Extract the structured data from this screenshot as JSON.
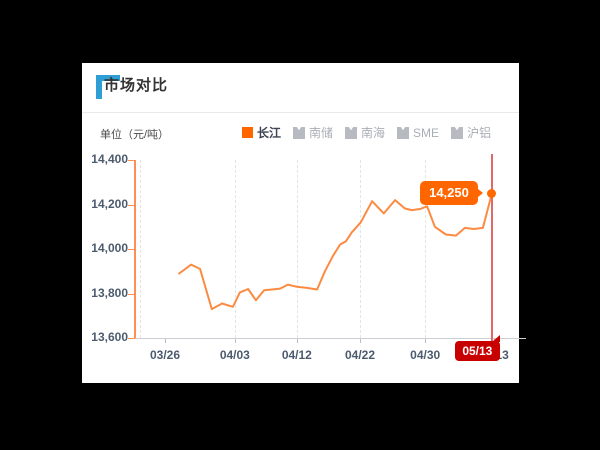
{
  "page": {
    "background": "#000000",
    "card_background": "#ffffff"
  },
  "header": {
    "title": "市场对比",
    "accent_color": "#2e9ed5"
  },
  "chart": {
    "unit_label": "单位（元/吨）",
    "legend": [
      {
        "label": "长江",
        "selected": true,
        "color": "#ff6600"
      },
      {
        "label": "南储",
        "selected": false
      },
      {
        "label": "南海",
        "selected": false
      },
      {
        "label": "SME",
        "selected": false
      },
      {
        "label": "沪铝",
        "selected": false
      }
    ]
  },
  "chart_data": {
    "type": "line",
    "title": "市场对比",
    "ylabel": "单位（元/吨）",
    "ylim": [
      13600,
      14400
    ],
    "grid": "dashed-vertical",
    "line_color": "#fb8b42",
    "axis_color": "#fb9050",
    "y_ticks": [
      {
        "value": 13600,
        "label": "13,600"
      },
      {
        "value": 13800,
        "label": "13,800"
      },
      {
        "value": 14000,
        "label": "14,000"
      },
      {
        "value": 14200,
        "label": "14,200"
      },
      {
        "value": 14400,
        "label": "14,400"
      }
    ],
    "x_ticks": [
      {
        "label": "03/26",
        "pos": 0.077
      },
      {
        "label": "04/03",
        "pos": 0.256
      },
      {
        "label": "04/12",
        "pos": 0.415
      },
      {
        "label": "04/22",
        "pos": 0.577
      },
      {
        "label": "04/30",
        "pos": 0.744
      },
      {
        "label": "05/13",
        "pos": 0.92
      }
    ],
    "gridlines_x": [
      0.013,
      0.256,
      0.415,
      0.577,
      0.744
    ],
    "series": [
      {
        "name": "长江",
        "points": [
          [
            0.113,
            13890
          ],
          [
            0.144,
            13930
          ],
          [
            0.167,
            13910
          ],
          [
            0.197,
            13730
          ],
          [
            0.223,
            13755
          ],
          [
            0.251,
            13740
          ],
          [
            0.269,
            13805
          ],
          [
            0.29,
            13820
          ],
          [
            0.31,
            13770
          ],
          [
            0.331,
            13815
          ],
          [
            0.351,
            13818
          ],
          [
            0.372,
            13822
          ],
          [
            0.392,
            13840
          ],
          [
            0.415,
            13830
          ],
          [
            0.441,
            13825
          ],
          [
            0.467,
            13818
          ],
          [
            0.487,
            13900
          ],
          [
            0.508,
            13970
          ],
          [
            0.526,
            14020
          ],
          [
            0.541,
            14035
          ],
          [
            0.556,
            14075
          ],
          [
            0.579,
            14120
          ],
          [
            0.608,
            14215
          ],
          [
            0.638,
            14160
          ],
          [
            0.667,
            14220
          ],
          [
            0.692,
            14182
          ],
          [
            0.71,
            14175
          ],
          [
            0.731,
            14180
          ],
          [
            0.749,
            14192
          ],
          [
            0.769,
            14100
          ],
          [
            0.797,
            14065
          ],
          [
            0.823,
            14060
          ],
          [
            0.846,
            14095
          ],
          [
            0.869,
            14090
          ],
          [
            0.892,
            14095
          ],
          [
            0.915,
            14250
          ]
        ]
      }
    ],
    "highlight": {
      "x": 0.915,
      "value": 14250,
      "value_label": "14,250",
      "date_label": "05/13",
      "line_color": "#e06a6b",
      "badge_color": "#c80000",
      "tooltip_color": "#ff6600"
    }
  }
}
